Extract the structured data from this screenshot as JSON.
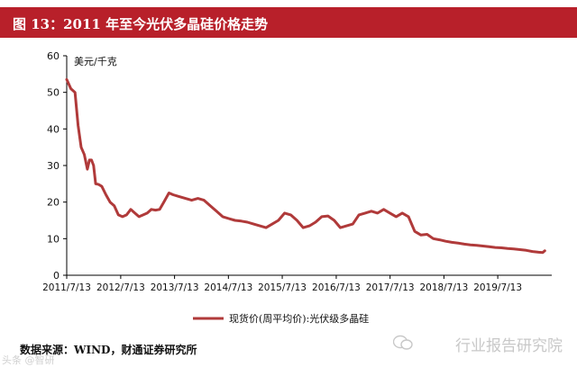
{
  "header": {
    "title": "图 13：2011 年至今光伏多晶硅价格走势"
  },
  "footer": {
    "source": "数据来源：WIND，财通证券研究所",
    "watermark": "行业报告研究院",
    "watermark_small": "头条 @智研"
  },
  "colors": {
    "title_bg": "#b8202a",
    "line": "#b03a3a"
  },
  "chart_data": {
    "type": "line",
    "ylabel": "美元/千克",
    "ylim": [
      0,
      60
    ],
    "yticks": [
      "0",
      "10",
      "20",
      "30",
      "40",
      "50",
      "60"
    ],
    "xticks": [
      "2011/7/13",
      "2012/7/13",
      "2013/7/13",
      "2014/7/13",
      "2015/7/13",
      "2016/7/13",
      "2017/7/13",
      "2018/7/13",
      "2019/7/13"
    ],
    "grid": false,
    "legend_position": "bottom",
    "series": [
      {
        "name": "现货价(周平均价):光伏级多晶硅",
        "x": [
          "2011/7/13",
          "2011/8/10",
          "2011/9/7",
          "2011/9/28",
          "2011/10/19",
          "2011/11/9",
          "2011/11/30",
          "2011/12/14",
          "2011/12/28",
          "2012/1/11",
          "2012/1/25",
          "2012/2/15",
          "2012/3/7",
          "2012/4/4",
          "2012/5/2",
          "2012/5/30",
          "2012/6/27",
          "2012/7/25",
          "2012/8/22",
          "2012/9/19",
          "2012/10/17",
          "2012/11/14",
          "2012/12/12",
          "2013/1/9",
          "2013/2/6",
          "2013/3/6",
          "2013/4/3",
          "2013/5/1",
          "2013/6/5",
          "2013/7/3",
          "2013/8/14",
          "2013/9/25",
          "2013/11/6",
          "2013/12/18",
          "2014/1/29",
          "2014/3/12",
          "2014/4/23",
          "2014/6/4",
          "2014/7/16",
          "2014/8/27",
          "2014/10/8",
          "2014/11/19",
          "2014/12/31",
          "2015/2/11",
          "2015/3/25",
          "2015/5/6",
          "2015/6/17",
          "2015/7/29",
          "2015/9/9",
          "2015/10/21",
          "2015/12/2",
          "2016/1/13",
          "2016/2/24",
          "2016/4/6",
          "2016/5/18",
          "2016/6/29",
          "2016/8/10",
          "2016/9/21",
          "2016/11/2",
          "2016/12/14",
          "2017/1/25",
          "2017/3/8",
          "2017/4/19",
          "2017/5/31",
          "2017/7/12",
          "2017/8/23",
          "2017/10/4",
          "2017/11/15",
          "2017/12/27",
          "2018/2/7",
          "2018/3/21",
          "2018/5/2",
          "2018/6/13",
          "2018/7/25",
          "2018/9/5",
          "2018/10/17",
          "2018/11/28",
          "2019/1/9",
          "2019/2/20",
          "2019/4/3",
          "2019/5/15",
          "2019/6/26",
          "2019/8/7",
          "2019/9/18",
          "2019/10/30",
          "2019/12/11",
          "2020/1/22",
          "2020/3/4",
          "2020/4/15",
          "2020/5/13",
          "2020/5/27"
        ],
        "values": [
          53.5,
          51,
          50,
          41,
          35,
          33,
          29,
          31.5,
          31.5,
          30,
          25,
          24.8,
          24.3,
          22,
          20,
          19,
          16.5,
          16,
          16.5,
          18,
          17,
          16,
          16.5,
          17,
          18,
          17.8,
          18,
          20,
          22.5,
          22,
          21.5,
          21,
          20.5,
          21,
          20.5,
          19,
          17.5,
          16,
          15.5,
          15,
          14.8,
          14.5,
          14,
          13.5,
          13,
          14,
          15,
          17,
          16.5,
          15,
          13,
          13.5,
          14.5,
          16,
          16.2,
          15,
          13,
          13.5,
          14,
          16.5,
          17,
          17.5,
          17,
          18,
          17,
          16,
          17,
          16,
          12,
          11,
          11.2,
          10,
          9.7,
          9.3,
          9,
          8.8,
          8.5,
          8.3,
          8.2,
          8,
          7.8,
          7.6,
          7.5,
          7.3,
          7.2,
          7,
          6.8,
          6.5,
          6.3,
          6.2,
          6.7
        ]
      }
    ]
  }
}
